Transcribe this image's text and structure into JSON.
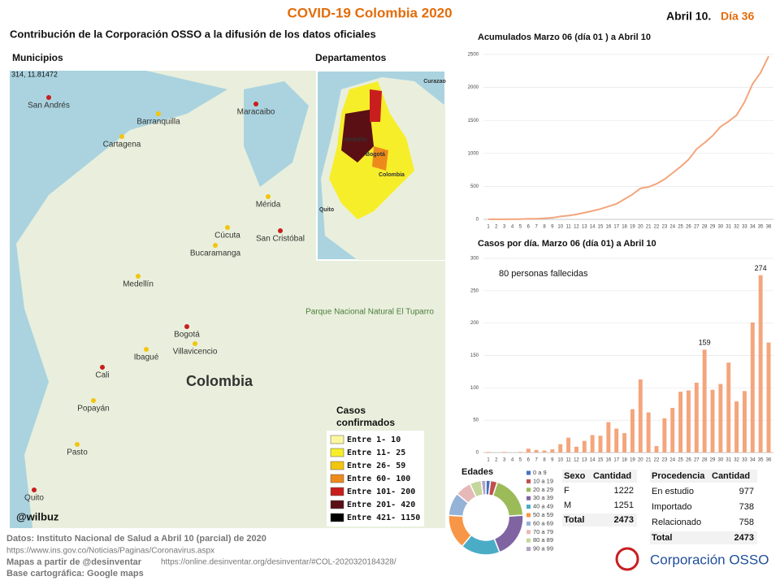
{
  "header": {
    "title": "COVID-19 Colombia 2020",
    "date": "Abril 10.",
    "day": "Día 36",
    "subtitle": "Contribución de la Corporación OSSO a la difusión de los datos oficiales"
  },
  "maps": {
    "municipios_label": "Municipios",
    "departamentos_label": "Departamentos",
    "coords": "314, 11.81472",
    "credit": "@wilbuz",
    "places": [
      "San Andrés",
      "Barranquilla",
      "Cartagena",
      "Maracaibo",
      "Mérida",
      "Cúcuta",
      "San Cristóbal",
      "Bucaramanga",
      "Medellín",
      "Bogotá",
      "Villavicencio",
      "Ibagué",
      "Cali",
      "Popayán",
      "Pasto",
      "Quito",
      "Colombia",
      "Parque Nacional Natural El Tuparro"
    ],
    "inset_places": [
      "Curazao",
      "Medellín",
      "Bogotá",
      "Colombia",
      "Quito"
    ],
    "legend": {
      "title_lines": [
        "Casos",
        "confirmados"
      ],
      "items": [
        {
          "label": "Entre 1- 10",
          "color": "#fbf7a0"
        },
        {
          "label": "Entre 11- 25",
          "color": "#f7ee2a"
        },
        {
          "label": "Entre 26- 59",
          "color": "#f2c50f"
        },
        {
          "label": "Entre 60- 100",
          "color": "#ee8a1c"
        },
        {
          "label": "Entre 101- 200",
          "color": "#c81e1e"
        },
        {
          "label": "Entre 201- 420",
          "color": "#5a0f14"
        },
        {
          "label": "Entre 421- 1150",
          "color": "#000000"
        }
      ]
    }
  },
  "chart_data": [
    {
      "type": "line",
      "title": "Acumulados  Marzo 06 (día 01 ) a Abril 10",
      "color": "#f4a57c",
      "x": [
        1,
        2,
        3,
        4,
        5,
        6,
        7,
        8,
        9,
        10,
        11,
        12,
        13,
        14,
        15,
        16,
        17,
        18,
        19,
        20,
        21,
        22,
        23,
        24,
        25,
        26,
        27,
        28,
        29,
        30,
        31,
        32,
        33,
        34,
        35,
        36
      ],
      "values": [
        1,
        1,
        1,
        3,
        3,
        9,
        9,
        16,
        24,
        45,
        57,
        75,
        102,
        128,
        158,
        196,
        235,
        306,
        378,
        470,
        491,
        539,
        608,
        702,
        798,
        906,
        1065,
        1161,
        1267,
        1406,
        1485,
        1579,
        1780,
        2054,
        2223,
        2473
      ],
      "xlim": [
        1,
        36
      ],
      "ylim": [
        0,
        2500
      ],
      "yticks": [
        0,
        500,
        1000,
        1500,
        2000,
        2500
      ],
      "grid": true
    },
    {
      "type": "bar",
      "title": "Casos por día. Marzo 06 (día 01) a Abril 10",
      "color": "#f4a57c",
      "annotation": "80 personas fallecidas",
      "x": [
        1,
        2,
        3,
        4,
        5,
        6,
        7,
        8,
        9,
        10,
        11,
        12,
        13,
        14,
        15,
        16,
        17,
        18,
        19,
        20,
        21,
        22,
        23,
        24,
        25,
        26,
        27,
        28,
        29,
        30,
        31,
        32,
        33,
        34,
        35,
        36
      ],
      "values": [
        1,
        0,
        1,
        0,
        1,
        6,
        4,
        3,
        5,
        13,
        23,
        9,
        18,
        27,
        26,
        47,
        37,
        30,
        67,
        113,
        62,
        10,
        53,
        69,
        94,
        96,
        108,
        159,
        97,
        106,
        139,
        79,
        95,
        201,
        274,
        170
      ],
      "value_labels": [
        null,
        null,
        null,
        null,
        null,
        null,
        null,
        null,
        null,
        null,
        null,
        null,
        null,
        null,
        null,
        null,
        null,
        null,
        null,
        null,
        null,
        null,
        null,
        null,
        null,
        null,
        null,
        "159",
        null,
        null,
        null,
        null,
        null,
        null,
        "274",
        null
      ],
      "xlim": [
        1,
        36
      ],
      "ylim": [
        0,
        300
      ],
      "yticks": [
        0,
        50,
        100,
        150,
        200,
        250,
        300
      ],
      "grid": true
    },
    {
      "type": "pie",
      "title": "Edades",
      "donut": true,
      "categories": [
        "0 a 9",
        "10 a 19",
        "20 a 29",
        "30 a 39",
        "40 a 49",
        "50 a 59",
        "60 a 69",
        "70 a 79",
        "80 a 89",
        "90 a 99"
      ],
      "values": [
        2,
        3,
        19,
        20,
        17,
        15,
        10,
        7,
        5,
        2
      ],
      "colors": [
        "#4472c4",
        "#c0504d",
        "#9bbb59",
        "#8064a2",
        "#4bacc6",
        "#f79646",
        "#95b3d7",
        "#e6b9b8",
        "#c3d69b",
        "#b3a2c7"
      ]
    }
  ],
  "tables": {
    "sexo": {
      "header": [
        "Sexo",
        "Cantidad"
      ],
      "rows": [
        [
          "F",
          1222
        ],
        [
          "M",
          1251
        ]
      ],
      "total": [
        "Total",
        2473
      ]
    },
    "procedencia": {
      "header": [
        "Procedencia",
        "Cantidad"
      ],
      "rows": [
        [
          "En estudio",
          977
        ],
        [
          "Importado",
          738
        ],
        [
          "Relacionado",
          758
        ]
      ],
      "total": [
        "Total",
        2473
      ]
    }
  },
  "footer": {
    "datos": "Datos: Instituto Nacional de Salud a Abril 10 (parcial) de 2020",
    "url": "https://www.ins.gov.co/Noticias/Paginas/Coronavirus.aspx",
    "mapas": "Mapas a partir de @desinventar",
    "mapas_url": "https://online.desinventar.org/desinventar/#COL-2020320184328/",
    "base": "Base cartográfica: Google  maps"
  },
  "logo": "Corporación OSSO"
}
